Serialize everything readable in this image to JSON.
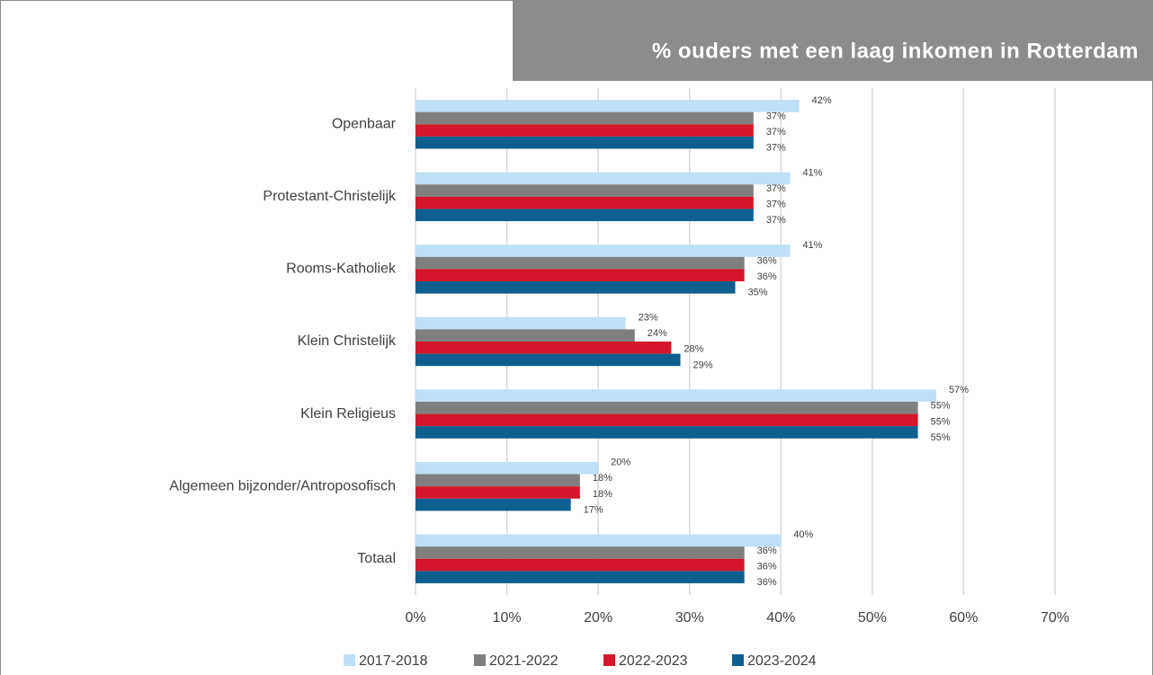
{
  "chart_data": {
    "type": "bar",
    "orientation": "horizontal",
    "title": "% ouders met een laag inkomen in Rotterdam",
    "categories": [
      "Openbaar",
      "Protestant-Christelijk",
      "Rooms-Katholiek",
      "Klein Christelijk",
      "Klein Religieus",
      "Algemeen bijzonder/Antroposofisch",
      "Totaal"
    ],
    "series": [
      {
        "name": "2017-2018",
        "color": "#bfe0f7",
        "values": [
          42,
          41,
          41,
          23,
          57,
          20,
          40
        ],
        "value_labels": [
          "42%",
          "41%",
          "41%",
          "23%",
          "57%",
          "20%",
          "40%"
        ]
      },
      {
        "name": "2021-2022",
        "color": "#7f7f7f",
        "values": [
          37,
          37,
          36,
          24,
          55,
          18,
          36
        ],
        "value_labels": [
          "37%",
          "37%",
          "36%",
          "24%",
          "55%",
          "18%",
          "36%"
        ]
      },
      {
        "name": "2022-2023",
        "color": "#d4172a",
        "values": [
          37,
          37,
          36,
          28,
          55,
          18,
          36
        ],
        "value_labels": [
          "37%",
          "37%",
          "36%",
          "28%",
          "55%",
          "18%",
          "36%"
        ]
      },
      {
        "name": "2023-2024",
        "color": "#0e5f8f",
        "values": [
          37,
          37,
          35,
          29,
          55,
          17,
          36
        ],
        "value_labels": [
          "37%",
          "37%",
          "35%",
          "29%",
          "55%",
          "17%",
          "36%"
        ]
      }
    ],
    "xlim": [
      0,
      70
    ],
    "xticks": [
      {
        "value": 0,
        "label": "0%"
      },
      {
        "value": 10,
        "label": "10%"
      },
      {
        "value": 20,
        "label": "20%"
      },
      {
        "value": 30,
        "label": "30%"
      },
      {
        "value": 40,
        "label": "40%"
      },
      {
        "value": 50,
        "label": "50%"
      },
      {
        "value": 60,
        "label": "60%"
      },
      {
        "value": 70,
        "label": "70%"
      }
    ],
    "grid": true,
    "legend": "bottom"
  }
}
